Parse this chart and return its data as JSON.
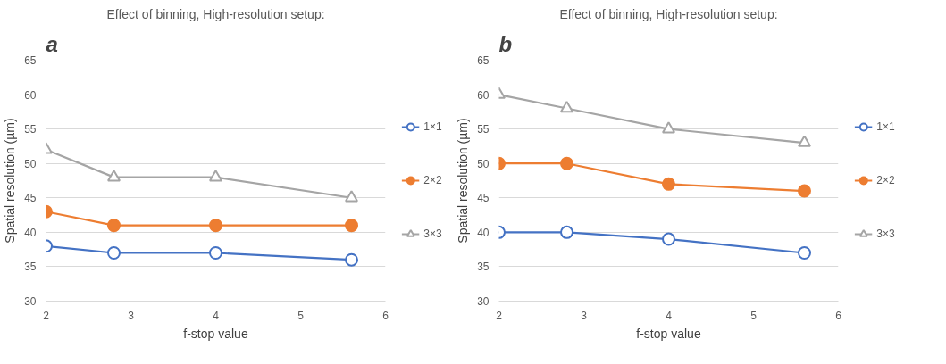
{
  "chart_data": [
    {
      "type": "line",
      "title": "Effect of binning, High-resolution setup:",
      "annotations": [
        "a"
      ],
      "xlabel": "f-stop value",
      "ylabel": "Spatial resolution (µm)",
      "xlim": [
        2,
        6
      ],
      "xticks": [
        2,
        3,
        4,
        5,
        6
      ],
      "ylim": [
        30,
        65
      ],
      "yticks": [
        30,
        35,
        40,
        45,
        50,
        55,
        60,
        65
      ],
      "grid": "y",
      "legend": "right",
      "x": [
        2,
        2.8,
        4,
        5.6
      ],
      "series": [
        {
          "name": "1×1",
          "color": "#4472c4",
          "values": [
            38,
            37,
            37,
            36
          ],
          "marker": "circle"
        },
        {
          "name": "2×2",
          "color": "#ed7d31",
          "values": [
            43,
            41,
            41,
            41
          ],
          "marker": "circle"
        },
        {
          "name": "3×3",
          "color": "#a5a5a5",
          "values": [
            52,
            48,
            48,
            45
          ],
          "marker": "triangle"
        }
      ]
    },
    {
      "type": "line",
      "title": "Effect of binning, High-resolution setup:",
      "annotations": [
        "b"
      ],
      "xlabel": "f-stop value",
      "ylabel": "Spatial resolution (µm)",
      "xlim": [
        2,
        6
      ],
      "xticks": [
        2,
        3,
        4,
        5,
        6
      ],
      "ylim": [
        30,
        65
      ],
      "yticks": [
        30,
        35,
        40,
        45,
        50,
        55,
        60,
        65
      ],
      "grid": "y",
      "legend": "right",
      "x": [
        2,
        2.8,
        4,
        5.6
      ],
      "series": [
        {
          "name": "1×1",
          "color": "#4472c4",
          "values": [
            40,
            40,
            39,
            37
          ],
          "marker": "circle"
        },
        {
          "name": "2×2",
          "color": "#ed7d31",
          "values": [
            50,
            50,
            47,
            46
          ],
          "marker": "circle"
        },
        {
          "name": "3×3",
          "color": "#a5a5a5",
          "values": [
            60,
            58,
            55,
            53
          ],
          "marker": "triangle"
        }
      ]
    }
  ]
}
